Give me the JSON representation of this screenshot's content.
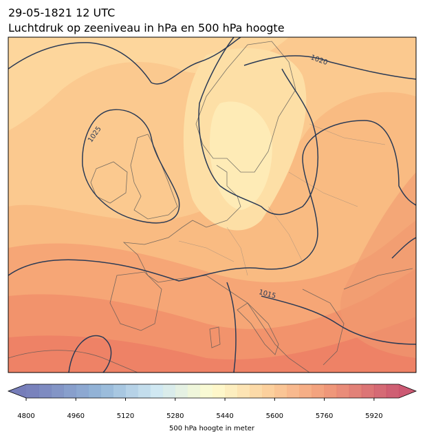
{
  "title": "29-05-1821 12 UTC",
  "subtitle": "Luchtdruk op zeeniveau in hPa en 500 hPa hoogte",
  "isobar_labels": [
    "1020",
    "1025",
    "1015"
  ],
  "colorbar": {
    "label": "500 hPa hoogte in meter",
    "range": [
      4800,
      6000
    ],
    "ticks": [
      4800,
      4960,
      5120,
      5280,
      5440,
      5600,
      5760,
      5920
    ]
  }
}
